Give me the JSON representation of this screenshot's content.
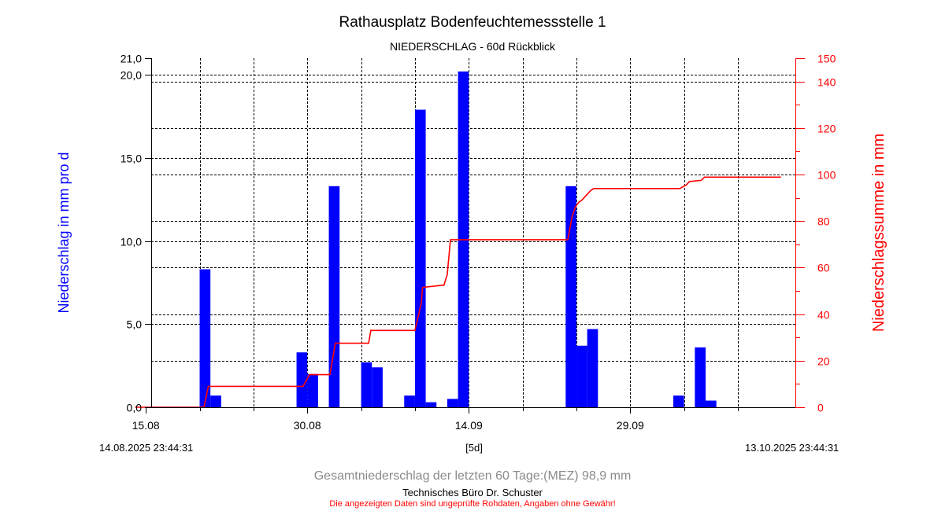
{
  "chart_data": {
    "type": "bar",
    "title": "Rathausplatz Bodenfeuchtemessstelle 1",
    "subtitle": "NIEDERSCHLAG - 60d Rückblick",
    "ylabel": "Niederschlag in mm pro d",
    "y2label": "Niederschlagssumme in mm",
    "ylim": [
      0,
      21
    ],
    "y2lim": [
      0,
      150
    ],
    "grid": true,
    "y_ticks": [
      "0,0",
      "5,0",
      "10,0",
      "15,0",
      "20,0",
      "21,0"
    ],
    "y2_ticks": [
      "0",
      "20",
      "40",
      "60",
      "80",
      "100",
      "120",
      "140",
      "150"
    ],
    "x_ticks": [
      "15.08",
      "30.08",
      "14.09",
      "29.09"
    ],
    "x_tick_days": [
      1,
      16,
      31,
      46
    ],
    "x_range_days": [
      0,
      60
    ],
    "series": [
      {
        "name": "",
        "kind": "bar",
        "color": "#0000ff",
        "day": [
          6,
          7,
          15,
          16,
          18,
          21,
          22,
          25,
          26,
          27,
          29,
          30,
          40,
          41,
          42,
          50,
          52,
          53
        ],
        "values": [
          8.3,
          0.7,
          3.3,
          2.0,
          13.3,
          2.7,
          2.4,
          0.7,
          17.9,
          0.3,
          0.5,
          20.2,
          13.3,
          3.7,
          4.7,
          0.7,
          3.6,
          0.4
        ]
      },
      {
        "name": "",
        "kind": "cumulative-line",
        "axis": "right",
        "color": "#ff0000",
        "day": [
          0,
          6.4,
          6.8,
          15.6,
          16.2,
          18.1,
          18.6,
          21.7,
          21.9,
          26.0,
          26.6,
          26.7,
          28.7,
          29.0,
          29.3,
          29.5,
          40.2,
          40.6,
          40.9,
          41.2,
          41.5,
          42.0,
          42.3,
          42.6,
          50.6,
          51.2,
          51.5,
          52.6,
          52.9,
          60.0
        ],
        "values": [
          0,
          0,
          9,
          9,
          14,
          14,
          27.5,
          27.5,
          33,
          33,
          45,
          51.5,
          52.5,
          57,
          72,
          72,
          72,
          82,
          86,
          88,
          89,
          91.5,
          93,
          94,
          94,
          95.5,
          97,
          97.5,
          98.9,
          98.9
        ]
      }
    ]
  },
  "labels": {
    "date_start": "14.08.2025 23:44:31",
    "date_end": "13.10.2025 23:44:31",
    "step": "[5d]",
    "total": "Gesamtniederschlag der letzten 60 Tage:(MEZ) 98,9 mm",
    "company": "Technisches Büro Dr. Schuster",
    "disclaimer": "Die angezeigten Daten sind ungeprüfte Rohdaten, Angaben ohne Gewähr!"
  }
}
